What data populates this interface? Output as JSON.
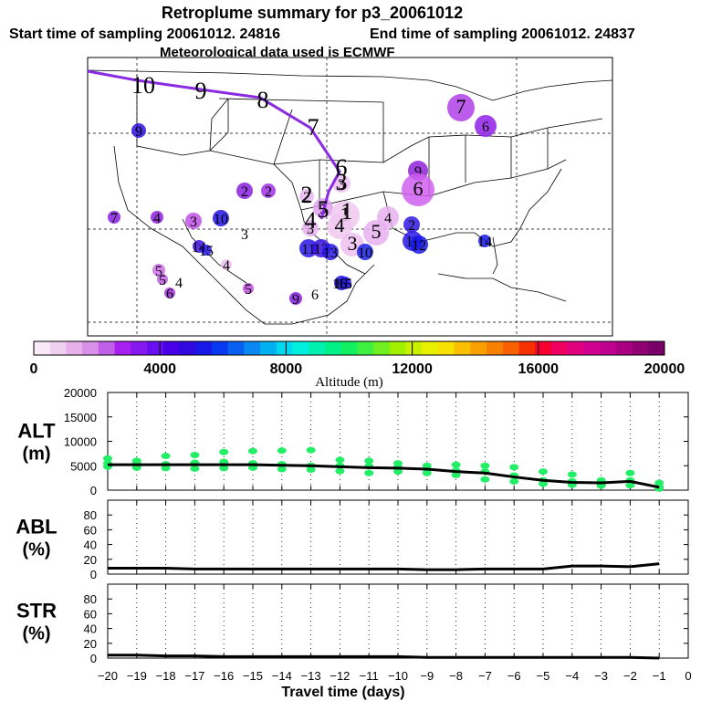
{
  "header": {
    "title": "Retroplume summary for p3_20061012",
    "start_time": "Start time of sampling 20061012. 24816",
    "end_time": "End time of sampling 20061012. 24837",
    "met_source": "Meteorological data used is ECMWF"
  },
  "colorbar": {
    "tick_labels": [
      "0",
      "4000",
      "8000",
      "12000",
      "16000",
      "20000"
    ],
    "label": "Altitude (m)",
    "colors": [
      "#f8e8f8",
      "#f0d0f0",
      "#e8b0e8",
      "#d890e8",
      "#c060e8",
      "#a820f0",
      "#8818f0",
      "#6810f0",
      "#4800e8",
      "#3008e0",
      "#1818e8",
      "#0838f0",
      "#0860f0",
      "#0888f0",
      "#00b0f0",
      "#00d8f0",
      "#00f0e0",
      "#00f0b0",
      "#00f088",
      "#10f060",
      "#40f040",
      "#70f020",
      "#a0f000",
      "#c8f000",
      "#e8f000",
      "#f8e000",
      "#f8c000",
      "#f8a000",
      "#f88000",
      "#f86000",
      "#f83000",
      "#f80030",
      "#f00060",
      "#e00080",
      "#d00090",
      "#c00090",
      "#a80080",
      "#900070",
      "#780068"
    ]
  },
  "map": {
    "trajectory_labels": [
      "10",
      "9",
      "8",
      "7",
      "6",
      "5",
      "4",
      "3",
      "2",
      "1"
    ],
    "plume_markers": [
      {
        "label": "7",
        "color": "#b040e8"
      },
      {
        "label": "6",
        "color": "#9020e8"
      },
      {
        "label": "9",
        "color": "#3010e0"
      },
      {
        "label": "9",
        "color": "#9020d8"
      },
      {
        "label": "6",
        "color": "#d060f0"
      },
      {
        "label": "2",
        "color": "#8820e0"
      },
      {
        "label": "2",
        "color": "#a030e8"
      },
      {
        "label": "3",
        "color": "#f0c0f0"
      },
      {
        "label": "2",
        "color": "#e8b8f0"
      },
      {
        "label": "7",
        "color": "#8820e0"
      },
      {
        "label": "4",
        "color": "#9020e0"
      },
      {
        "label": "3",
        "color": "#c050e8"
      },
      {
        "label": "10",
        "color": "#2010e8"
      },
      {
        "label": "3",
        "color": "#ffffff"
      },
      {
        "label": "5",
        "color": "#e0a0f0"
      },
      {
        "label": "1",
        "color": "#f0c8f0"
      },
      {
        "label": "4",
        "color": "#e8b0f0"
      },
      {
        "label": "3",
        "color": "#e8b0f0"
      },
      {
        "label": "4",
        "color": "#f0c8f0"
      },
      {
        "label": "5",
        "color": "#e8b0f0"
      },
      {
        "label": "3",
        "color": "#f0c0f0"
      },
      {
        "label": "2",
        "color": "#3018e0"
      },
      {
        "label": "11",
        "color": "#2818e8"
      },
      {
        "label": "12",
        "color": "#3810e0"
      },
      {
        "label": "13",
        "color": "#2818e8"
      },
      {
        "label": "10",
        "color": "#1820e8"
      },
      {
        "label": "11",
        "color": "#2818e8"
      },
      {
        "label": "12",
        "color": "#1818e8"
      },
      {
        "label": "14",
        "color": "#4010e0"
      },
      {
        "label": "15",
        "color": "#2818e8"
      },
      {
        "label": "14",
        "color": "#1818e8"
      },
      {
        "label": "13",
        "color": "#2010e0"
      },
      {
        "label": "5",
        "color": "#d070e8"
      },
      {
        "label": "4",
        "color": "#f0c0f0"
      },
      {
        "label": "5",
        "color": "#c060e0"
      },
      {
        "label": "5",
        "color": "#c050e0"
      },
      {
        "label": "4",
        "color": "#ffffff"
      },
      {
        "label": "6",
        "color": "#a030d8"
      },
      {
        "label": "6",
        "color": "#ffffff"
      },
      {
        "label": "9",
        "color": "#8820e0"
      },
      {
        "label": "6",
        "color": "#ffffff"
      },
      {
        "label": "15",
        "color": "#2818e8"
      },
      {
        "label": "16",
        "color": "#ffffff"
      }
    ]
  },
  "chart_data": [
    {
      "type": "scatter",
      "name": "ALT",
      "ylabel": "ALT (m)",
      "ylabel_lines": [
        "ALT",
        "(m)"
      ],
      "xlim": [
        -20,
        0
      ],
      "ylim": [
        0,
        20000
      ],
      "yticks": [
        0,
        5000,
        10000,
        15000,
        20000
      ],
      "ytick_labels": [
        "0",
        "5000",
        "10000",
        "15000",
        "20000"
      ],
      "mean_line": {
        "x": [
          -20,
          -19,
          -18,
          -17,
          -16,
          -15,
          -14,
          -13,
          -12,
          -11,
          -10,
          -9,
          -8,
          -7,
          -6,
          -5,
          -4,
          -3,
          -2,
          -1
        ],
        "y": [
          5200,
          5200,
          5200,
          5200,
          5200,
          5200,
          5100,
          5000,
          4800,
          4600,
          4500,
          4300,
          3800,
          3500,
          2700,
          2000,
          1600,
          1500,
          1800,
          600
        ]
      },
      "points": [
        [
          -20,
          6500
        ],
        [
          -20,
          5500
        ],
        [
          -20,
          4800
        ],
        [
          -19,
          6000
        ],
        [
          -19,
          5400
        ],
        [
          -19,
          4600
        ],
        [
          -18,
          7000
        ],
        [
          -18,
          5300
        ],
        [
          -18,
          4500
        ],
        [
          -17,
          7200
        ],
        [
          -17,
          5600
        ],
        [
          -17,
          4400
        ],
        [
          -16,
          7800
        ],
        [
          -16,
          5800
        ],
        [
          -16,
          4500
        ],
        [
          -15,
          8000
        ],
        [
          -15,
          5500
        ],
        [
          -15,
          4600
        ],
        [
          -14,
          8100
        ],
        [
          -14,
          5300
        ],
        [
          -14,
          4300
        ],
        [
          -13,
          8200
        ],
        [
          -13,
          5000
        ],
        [
          -13,
          4200
        ],
        [
          -12,
          6200
        ],
        [
          -12,
          5000
        ],
        [
          -12,
          3900
        ],
        [
          -11,
          6000
        ],
        [
          -11,
          4900
        ],
        [
          -11,
          3500
        ],
        [
          -10,
          5500
        ],
        [
          -10,
          4700
        ],
        [
          -10,
          3800
        ],
        [
          -9,
          5000
        ],
        [
          -9,
          4300
        ],
        [
          -9,
          3500
        ],
        [
          -8,
          5200
        ],
        [
          -8,
          4000
        ],
        [
          -8,
          3100
        ],
        [
          -7,
          5000
        ],
        [
          -7,
          3800
        ],
        [
          -7,
          2200
        ],
        [
          -6,
          4700
        ],
        [
          -6,
          3000
        ],
        [
          -6,
          1800
        ],
        [
          -5,
          3800
        ],
        [
          -5,
          2000
        ],
        [
          -5,
          1300
        ],
        [
          -4,
          3200
        ],
        [
          -4,
          1800
        ],
        [
          -4,
          1100
        ],
        [
          -3,
          2000
        ],
        [
          -3,
          1200
        ],
        [
          -3,
          900
        ],
        [
          -2,
          3500
        ],
        [
          -2,
          2000
        ],
        [
          -2,
          1000
        ],
        [
          -1,
          1500
        ],
        [
          -1,
          700
        ],
        [
          -1,
          300
        ]
      ]
    },
    {
      "type": "line",
      "name": "ABL",
      "ylabel": "ABL (%)",
      "ylabel_lines": [
        "ABL",
        "(%)"
      ],
      "xlim": [
        -20,
        0
      ],
      "ylim": [
        0,
        100
      ],
      "yticks": [
        0,
        20,
        40,
        60,
        80
      ],
      "ytick_labels": [
        "0",
        "20",
        "40",
        "60",
        "80"
      ],
      "x": [
        -20,
        -19,
        -18,
        -17,
        -16,
        -15,
        -14,
        -13,
        -12,
        -11,
        -10,
        -9,
        -8,
        -7,
        -6,
        -5,
        -4,
        -3,
        -2,
        -1
      ],
      "y": [
        8,
        8,
        8,
        7,
        7,
        7,
        7,
        7,
        7,
        7,
        7,
        6,
        6,
        7,
        7,
        7,
        11,
        11,
        10,
        14
      ]
    },
    {
      "type": "line",
      "name": "STR",
      "ylabel": "STR (%)",
      "ylabel_lines": [
        "STR",
        "(%)"
      ],
      "xlim": [
        -20,
        0
      ],
      "ylim": [
        0,
        100
      ],
      "yticks": [
        0,
        20,
        40,
        60,
        80
      ],
      "ytick_labels": [
        "0",
        "20",
        "40",
        "60",
        "80"
      ],
      "x": [
        -20,
        -19,
        -18,
        -17,
        -16,
        -15,
        -14,
        -13,
        -12,
        -11,
        -10,
        -9,
        -8,
        -7,
        -6,
        -5,
        -4,
        -3,
        -2,
        -1
      ],
      "y": [
        4,
        4,
        3,
        3,
        2,
        2,
        2,
        2,
        2,
        2,
        2,
        1,
        1,
        1,
        1,
        1,
        1,
        1,
        1,
        0
      ]
    }
  ],
  "x_axis": {
    "tick_values": [
      -20,
      -19,
      -18,
      -17,
      -16,
      -15,
      -14,
      -13,
      -12,
      -11,
      -10,
      -9,
      -8,
      -7,
      -6,
      -5,
      -4,
      -3,
      -2,
      -1,
      0
    ],
    "tick_labels": [
      "−20",
      "−19",
      "−18",
      "−17",
      "−16",
      "−15",
      "−14",
      "−13",
      "−12",
      "−11",
      "−10",
      "−9",
      "−8",
      "−7",
      "−6",
      "−5",
      "−4",
      "−3",
      "−2",
      "−1",
      "0"
    ],
    "label": "Travel time (days)"
  }
}
